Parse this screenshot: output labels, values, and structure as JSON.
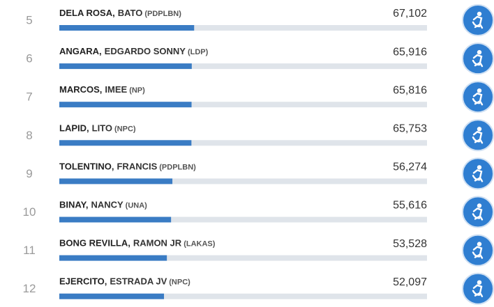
{
  "chart_data": {
    "type": "bar",
    "ranks": [
      5,
      6,
      7,
      8,
      9,
      10,
      11,
      12
    ],
    "surnames": [
      "DELA ROSA,",
      "ANGARA,",
      "MARCOS,",
      "LAPID,",
      "TOLENTINO,",
      "BINAY,",
      "BONG REVILLA,",
      "EJERCITO,"
    ],
    "given_names": [
      "BATO",
      "EDGARDO SONNY",
      "IMEE",
      "LITO",
      "FRANCIS",
      "NANCY",
      "RAMON JR",
      "ESTRADA JV"
    ],
    "parties": [
      "(PDPLBN)",
      "(LDP)",
      "(NP)",
      "(NPC)",
      "(PDPLBN)",
      "(UNA)",
      "(LAKAS)",
      "(NPC)"
    ],
    "values": [
      67102,
      65916,
      65816,
      65753,
      56274,
      55616,
      53528,
      52097
    ],
    "value_labels": [
      "67,102",
      "65,916",
      "65,816",
      "65,753",
      "56,274",
      "55,616",
      "53,528",
      "52,097"
    ],
    "xlim": [
      0,
      183000
    ],
    "color": "#3a7cc4"
  }
}
